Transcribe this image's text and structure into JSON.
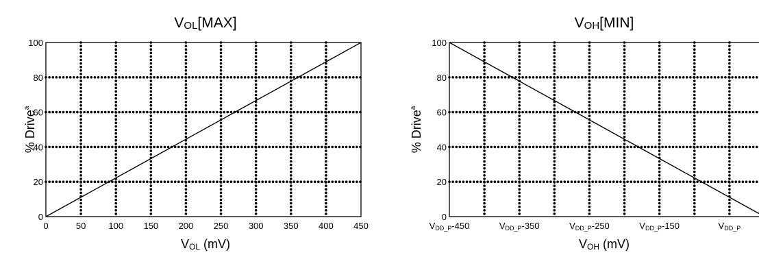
{
  "chart_data": [
    {
      "type": "line",
      "title": {
        "main": "V",
        "sub": "OL",
        "rest": "[MAX]"
      },
      "xlabel": {
        "main": "V",
        "sub": "OL",
        "rest": " (mV)"
      },
      "ylabel": {
        "main": "% Drive",
        "sup": "a"
      },
      "xlim": [
        0,
        450
      ],
      "ylim": [
        0,
        100
      ],
      "x_ticks": [
        "0",
        "50",
        "100",
        "150",
        "200",
        "250",
        "300",
        "350",
        "400",
        "450"
      ],
      "y_ticks": [
        "0",
        "20",
        "40",
        "60",
        "80",
        "100"
      ],
      "grid": "dotted",
      "series": [
        {
          "x": [
            0,
            450
          ],
          "y": [
            0,
            100
          ]
        }
      ]
    },
    {
      "type": "line",
      "title": {
        "main": "V",
        "sub": "OH",
        "rest": "[MIN]"
      },
      "xlabel": {
        "main": "V",
        "sub": "OH",
        "rest": " (mV)"
      },
      "ylabel": {
        "main": "% Drive",
        "sup": "a"
      },
      "xlim": [
        -450,
        0
      ],
      "ylim": [
        0,
        100
      ],
      "x_ticks": [
        {
          "main": "V",
          "sub": "DD_P",
          "rest": "-450"
        },
        {
          "main": "V",
          "sub": "DD_P",
          "rest": "-350"
        },
        {
          "main": "V",
          "sub": "DD_P",
          "rest": "-250"
        },
        {
          "main": "V",
          "sub": "DD_P",
          "rest": "-150"
        },
        {
          "main": "V",
          "sub": "DD_P",
          "rest": ""
        }
      ],
      "y_ticks": [
        "0",
        "20",
        "40",
        "60",
        "80",
        "100"
      ],
      "grid": "dotted",
      "series": [
        {
          "x": [
            -450,
            0
          ],
          "y": [
            100,
            0
          ]
        }
      ]
    }
  ]
}
